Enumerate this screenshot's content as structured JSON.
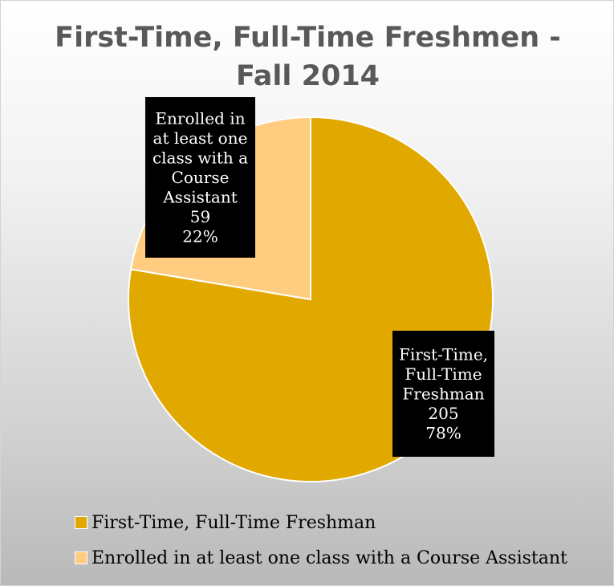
{
  "chart_data": {
    "type": "pie",
    "title": "First-Time, Full-Time Freshmen - Fall 2014",
    "categories": [
      "First-Time, Full-Time Freshman",
      "Enrolled in at least one class with a Course Assistant"
    ],
    "values": [
      205,
      59
    ],
    "percent_labels": [
      "78%",
      "22%"
    ],
    "colors": [
      "#E1A800",
      "#FFCC80"
    ],
    "data_labels": [
      {
        "lines": [
          "First-Time,",
          "Full-Time",
          "Freshman"
        ],
        "value": "205",
        "percent": "78%"
      },
      {
        "lines": [
          "Enrolled in",
          "at least one",
          "class with a",
          "Course",
          "Assistant"
        ],
        "value": "59",
        "percent": "22%"
      }
    ],
    "legend_position": "bottom",
    "legend": [
      {
        "label": "First-Time, Full-Time Freshman",
        "color": "#E1A800"
      },
      {
        "label": "Enrolled in at least one class with a Course Assistant",
        "color": "#FFCC80"
      }
    ]
  }
}
